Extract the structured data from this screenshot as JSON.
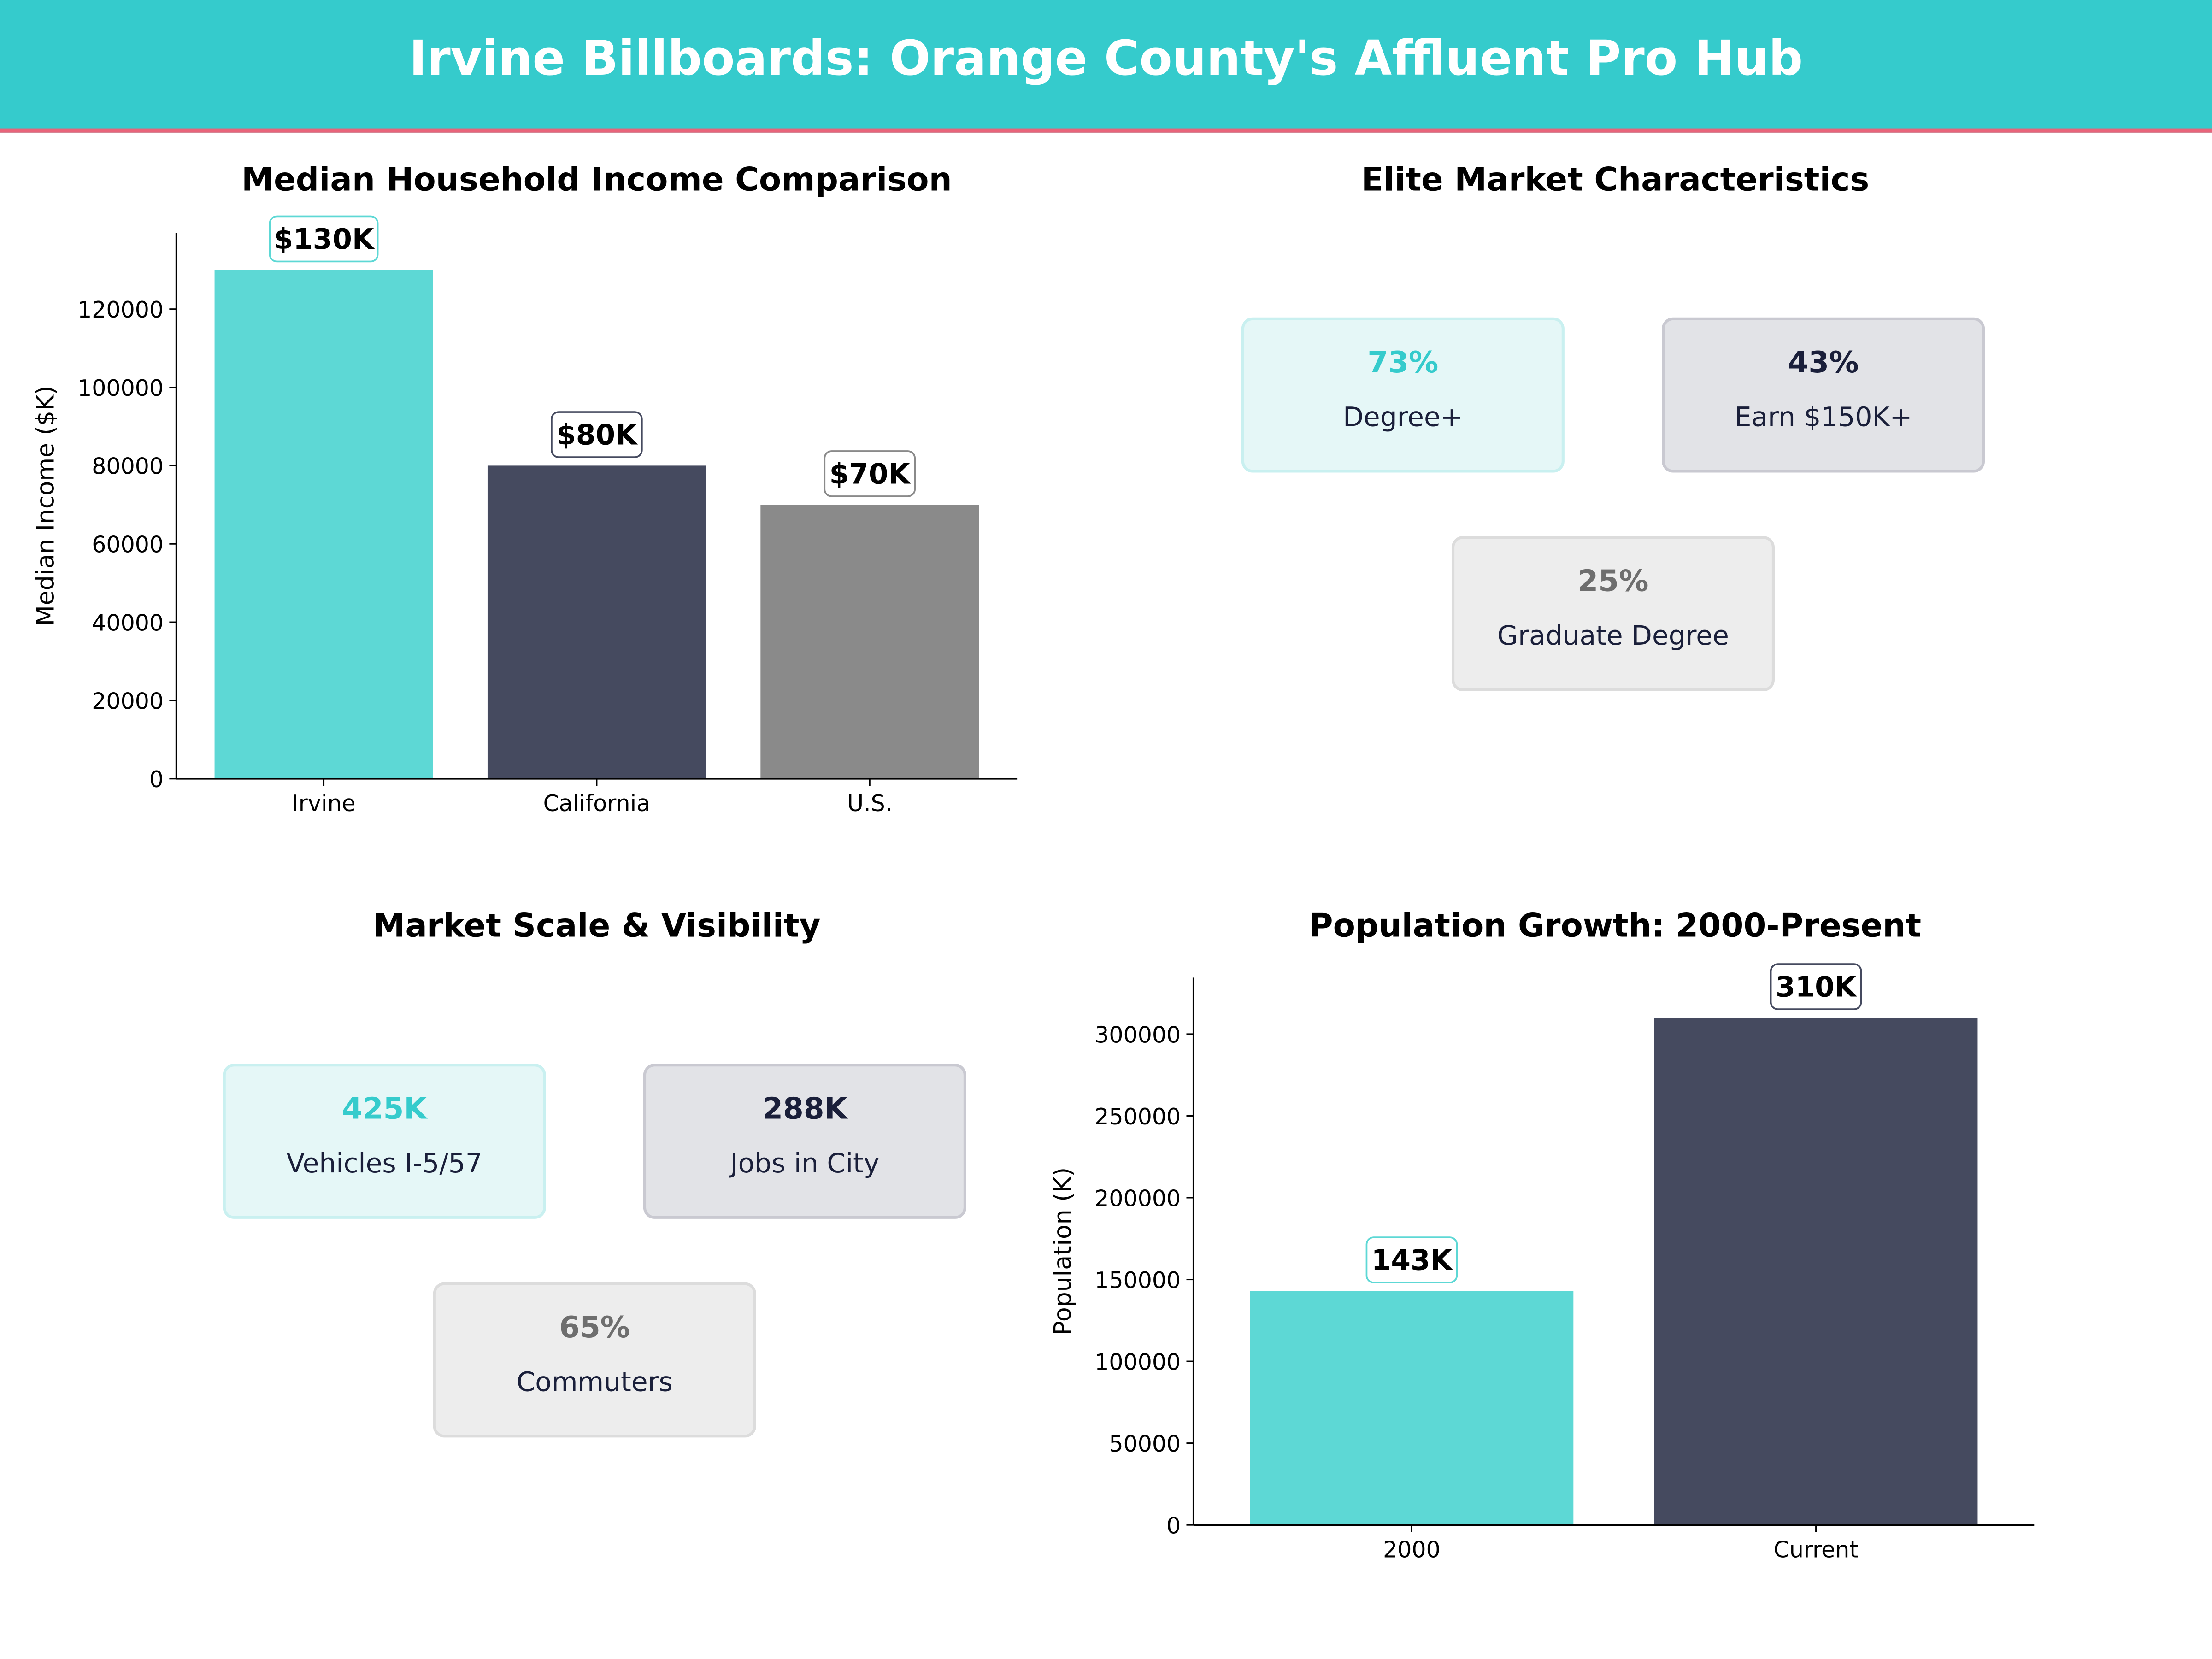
{
  "header": {
    "title": "Irvine Billboards: Orange County's Affluent Pro Hub"
  },
  "colors": {
    "teal": "#35CBCC",
    "accent_line": "#E8647A",
    "bar_teal": "#5DD8D5",
    "bar_navy": "#454A5F",
    "bar_gray": "#8A8A8A"
  },
  "elite": {
    "title": "Elite Market Characteristics",
    "cards": [
      {
        "value": "73%",
        "label": "Degree+",
        "style": "teal"
      },
      {
        "value": "43%",
        "label": "Earn $150K+",
        "style": "navy"
      },
      {
        "value": "25%",
        "label": "Graduate Degree",
        "style": "gray"
      }
    ]
  },
  "scale": {
    "title": "Market Scale & Visibility",
    "cards": [
      {
        "value": "425K",
        "label": "Vehicles I-5/57",
        "style": "teal"
      },
      {
        "value": "288K",
        "label": "Jobs in City",
        "style": "navy"
      },
      {
        "value": "65%",
        "label": "Commuters",
        "style": "gray"
      }
    ]
  },
  "chart_data": [
    {
      "type": "bar",
      "title": "Median Household Income Comparison",
      "xlabel": "",
      "ylabel": "Median Income ($K)",
      "categories": [
        "Irvine",
        "California",
        "U.S."
      ],
      "values": [
        130000,
        80000,
        70000
      ],
      "data_labels": [
        "$130K",
        "$80K",
        "$70K"
      ],
      "colors": [
        "#5DD8D5",
        "#454A5F",
        "#8A8A8A"
      ],
      "yticks": [
        0,
        20000,
        40000,
        60000,
        80000,
        100000,
        120000
      ],
      "ylim": [
        0,
        139500
      ],
      "grid": false
    },
    {
      "type": "bar",
      "title": "Population Growth: 2000-Present",
      "xlabel": "",
      "ylabel": "Population (K)",
      "categories": [
        "2000",
        "Current"
      ],
      "values": [
        143000,
        310000
      ],
      "data_labels": [
        "143K",
        "310K"
      ],
      "colors": [
        "#5DD8D5",
        "#454A5F"
      ],
      "yticks": [
        0,
        50000,
        100000,
        150000,
        200000,
        250000,
        300000
      ],
      "ylim": [
        0,
        334500
      ],
      "grid": false
    }
  ]
}
